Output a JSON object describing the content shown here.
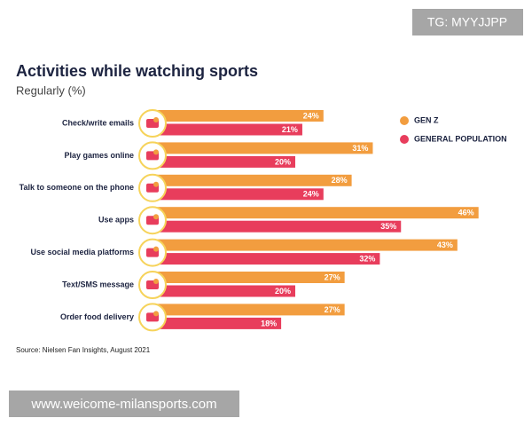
{
  "chart_data": {
    "type": "bar",
    "orientation": "horizontal",
    "title": "Activities while watching sports",
    "subtitle": "Regularly (%)",
    "categories": [
      "Check/write emails",
      "Play games online",
      "Talk to someone on the phone",
      "Use apps",
      "Use social media platforms",
      "Text/SMS message",
      "Order food delivery"
    ],
    "series": [
      {
        "name": "GEN Z",
        "color": "#f29d3f",
        "values": [
          24,
          31,
          28,
          46,
          43,
          27,
          27
        ],
        "value_labels": [
          "24%",
          "31%",
          "28%",
          "46%",
          "43%",
          "27%",
          "27%"
        ]
      },
      {
        "name": "GENERAL POPULATION",
        "color": "#e83d5c",
        "values": [
          21,
          20,
          24,
          35,
          32,
          20,
          18
        ],
        "value_labels": [
          "21%",
          "20%",
          "24%",
          "35%",
          "32%",
          "20%",
          "18%"
        ]
      }
    ],
    "legend": "top-right",
    "source": "Source: Nielsen Fan Insights, August 2021"
  },
  "watermarks": {
    "top": "TG: MYYJJPP",
    "bottom": "www.weicome-milansports.com"
  }
}
